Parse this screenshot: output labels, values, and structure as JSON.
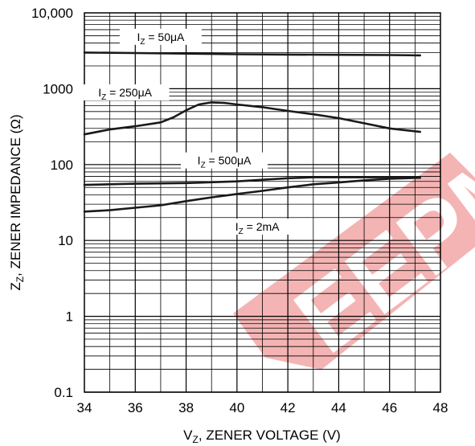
{
  "chart_data": {
    "type": "line",
    "title": "",
    "xlabel": "ZENER VOLTAGE (V)",
    "xlabel_symbol": "V",
    "xlabel_sub": "Z",
    "ylabel": "ZENER IMPEDANCE (Ω)",
    "ylabel_symbol": "Z",
    "ylabel_sub": "Z",
    "x_scale": "linear",
    "y_scale": "log",
    "xlim": [
      34,
      48
    ],
    "ylim": [
      0.1,
      10000
    ],
    "x_ticks": [
      34,
      36,
      38,
      40,
      42,
      44,
      46,
      48
    ],
    "y_ticks": [
      0.1,
      1,
      10,
      100,
      1000,
      10000
    ],
    "y_tick_labels": [
      "0.1",
      "1",
      "10",
      "100",
      "1000",
      "10,000"
    ],
    "grid": true,
    "series": [
      {
        "name": "50μA",
        "label_prefix": "I",
        "label_sub": "Z",
        "label_value": "= 50μA",
        "x": [
          34,
          36,
          38,
          40,
          42,
          44,
          46,
          47.2
        ],
        "y": [
          3000,
          2950,
          2900,
          2850,
          2820,
          2800,
          2780,
          2750
        ]
      },
      {
        "name": "250μA",
        "label_prefix": "I",
        "label_sub": "Z",
        "label_value": "= 250μA",
        "x": [
          34,
          35,
          36,
          37,
          37.5,
          38,
          38.5,
          39,
          39.5,
          40,
          41,
          42,
          43,
          44,
          45,
          46,
          47.2
        ],
        "y": [
          250,
          290,
          320,
          360,
          420,
          520,
          620,
          660,
          650,
          620,
          570,
          510,
          460,
          410,
          350,
          300,
          270
        ]
      },
      {
        "name": "500μA",
        "label_prefix": "I",
        "label_sub": "Z",
        "label_value": "= 500μA",
        "x": [
          34,
          36,
          38,
          40,
          41,
          42,
          43,
          44,
          46,
          47.2
        ],
        "y": [
          54,
          56,
          57,
          60,
          63,
          66,
          68,
          68,
          68,
          67
        ]
      },
      {
        "name": "2mA",
        "label_prefix": "I",
        "label_sub": "Z",
        "label_value": "= 2mA",
        "x": [
          34,
          35,
          36,
          37,
          38,
          39,
          40,
          41,
          42,
          43,
          44,
          45,
          46,
          47.2
        ],
        "y": [
          24,
          25,
          27,
          29,
          33,
          37,
          41,
          45,
          50,
          55,
          58,
          62,
          65,
          67
        ]
      }
    ]
  }
}
